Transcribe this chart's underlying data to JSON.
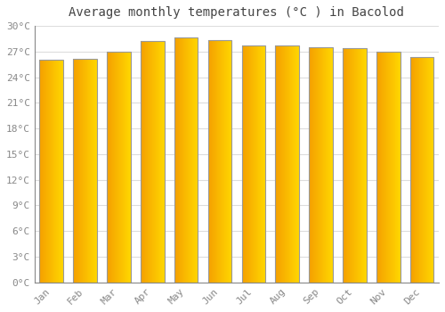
{
  "title": "Average monthly temperatures (°C ) in Bacolod",
  "months": [
    "Jan",
    "Feb",
    "Mar",
    "Apr",
    "May",
    "Jun",
    "Jul",
    "Aug",
    "Sep",
    "Oct",
    "Nov",
    "Dec"
  ],
  "temperatures": [
    26.0,
    26.1,
    27.0,
    28.2,
    28.7,
    28.3,
    27.7,
    27.7,
    27.5,
    27.4,
    27.0,
    26.4
  ],
  "ylim": [
    0,
    30
  ],
  "yticks": [
    0,
    3,
    6,
    9,
    12,
    15,
    18,
    21,
    24,
    27,
    30
  ],
  "bar_color_left": "#F5A000",
  "bar_color_right": "#FFD700",
  "bar_edge_color": "#999999",
  "background_color": "#ffffff",
  "grid_color": "#dddddd",
  "title_fontsize": 10,
  "tick_fontsize": 8,
  "tick_color": "#888888",
  "bar_width": 0.7,
  "gradient_steps": 80
}
